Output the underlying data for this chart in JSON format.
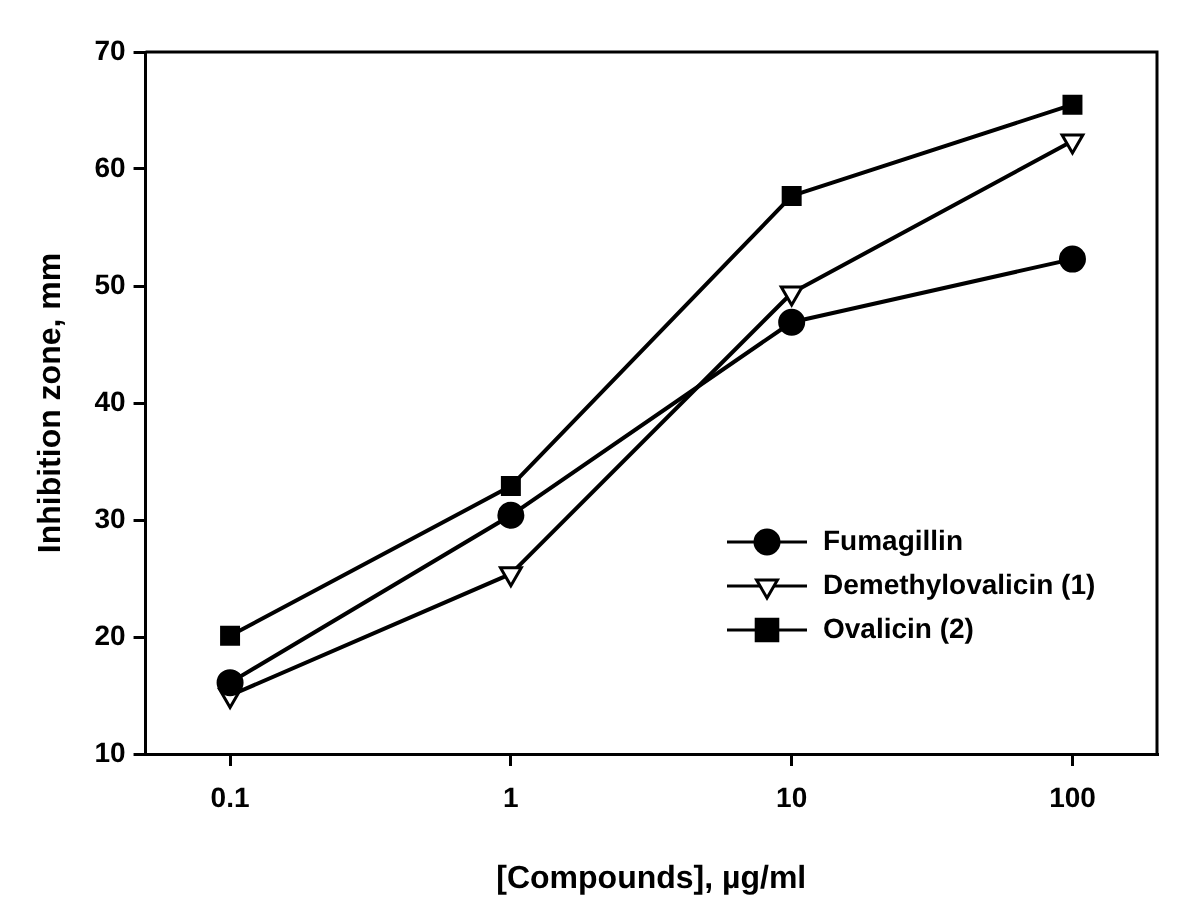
{
  "chart_data": {
    "type": "line",
    "xlabel": "[Compounds], µg/ml",
    "ylabel": "Inhibition zone, mm",
    "x": [
      0.1,
      1,
      10,
      100
    ],
    "log": "x",
    "xlim": [
      0.05,
      200
    ],
    "xticks": [
      0.1,
      1,
      10,
      100
    ],
    "ylim": [
      10,
      70
    ],
    "yticks": [
      10,
      20,
      30,
      40,
      50,
      60,
      70
    ],
    "grid": false,
    "legend": "bottom right",
    "series": [
      {
        "name": "Fumagillin",
        "color": "#000000",
        "marker": "circle",
        "values": [
          16.1,
          30.4,
          46.9,
          52.3
        ]
      },
      {
        "name": "Demethylovalicin (1)",
        "color": "#000000",
        "marker": "triangle",
        "values": [
          15,
          25.4,
          49.4,
          62.4
        ]
      },
      {
        "name": "Ovalicin (2)",
        "color": "#000000",
        "marker": "square",
        "values": [
          20.1,
          32.9,
          57.7,
          65.5
        ]
      }
    ]
  }
}
